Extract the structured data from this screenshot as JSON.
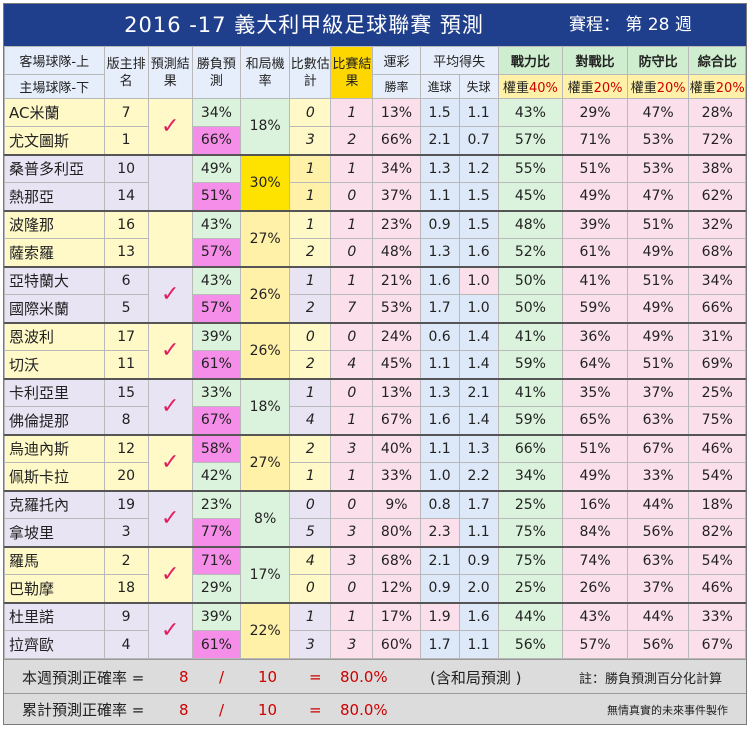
{
  "title": "2016 -17 義大利甲級足球聯賽 預測",
  "schedule_label": "賽程： 第 28 週",
  "headers": {
    "teams_top": "客場球隊-上",
    "teams_bottom": "主場球隊-下",
    "rank": "版主排名",
    "predict": "預測結果",
    "winloss": "勝負預測",
    "draw": "和局機率",
    "score_est": "比數估計",
    "result": "比賽結果",
    "lottery": "運彩",
    "lottery_sub": "勝率",
    "avg": "平均得失",
    "avg_for": "進球",
    "avg_against": "失球",
    "power": "戰力比",
    "matchup": "對戰比",
    "defense": "防守比",
    "overall": "綜合比",
    "weight_prefix": "權重",
    "w_power": "40%",
    "w_matchup": "20%",
    "w_defense": "20%",
    "w_overall": "20%"
  },
  "check_mark": "✓",
  "matches": [
    {
      "draw": "18%",
      "predicted": true,
      "away": {
        "team": "AC米蘭",
        "rank": "7",
        "win": "34%",
        "score": "0",
        "result": "1",
        "lottery": "13%",
        "gf": "1.5",
        "ga": "1.1",
        "power": "43%",
        "matchup": "29%",
        "defense": "47%",
        "overall": "28%"
      },
      "home": {
        "team": "尤文圖斯",
        "rank": "1",
        "win": "66%",
        "score": "3",
        "result": "2",
        "lottery": "66%",
        "gf": "2.1",
        "ga": "0.7",
        "power": "57%",
        "matchup": "71%",
        "defense": "53%",
        "overall": "72%"
      }
    },
    {
      "draw": "30%",
      "predicted": false,
      "away": {
        "team": "桑普多利亞",
        "rank": "10",
        "win": "49%",
        "score": "1",
        "result": "1",
        "lottery": "34%",
        "gf": "1.3",
        "ga": "1.2",
        "power": "55%",
        "matchup": "51%",
        "defense": "53%",
        "overall": "38%"
      },
      "home": {
        "team": "熱那亞",
        "rank": "14",
        "win": "51%",
        "score": "1",
        "result": "0",
        "lottery": "37%",
        "gf": "1.1",
        "ga": "1.5",
        "power": "45%",
        "matchup": "49%",
        "defense": "47%",
        "overall": "62%"
      }
    },
    {
      "draw": "27%",
      "predicted": false,
      "away": {
        "team": "波隆那",
        "rank": "16",
        "win": "43%",
        "score": "1",
        "result": "1",
        "lottery": "23%",
        "gf": "0.9",
        "ga": "1.5",
        "power": "48%",
        "matchup": "39%",
        "defense": "51%",
        "overall": "32%"
      },
      "home": {
        "team": "薩索羅",
        "rank": "13",
        "win": "57%",
        "score": "2",
        "result": "0",
        "lottery": "48%",
        "gf": "1.3",
        "ga": "1.6",
        "power": "52%",
        "matchup": "61%",
        "defense": "49%",
        "overall": "68%"
      }
    },
    {
      "draw": "26%",
      "predicted": true,
      "away": {
        "team": "亞特蘭大",
        "rank": "6",
        "win": "43%",
        "score": "1",
        "result": "1",
        "lottery": "21%",
        "gf": "1.6",
        "ga": "1.0",
        "power": "50%",
        "matchup": "41%",
        "defense": "51%",
        "overall": "34%"
      },
      "home": {
        "team": "國際米蘭",
        "rank": "5",
        "win": "57%",
        "score": "2",
        "result": "7",
        "lottery": "53%",
        "gf": "1.7",
        "ga": "1.0",
        "power": "50%",
        "matchup": "59%",
        "defense": "49%",
        "overall": "66%"
      }
    },
    {
      "draw": "26%",
      "predicted": true,
      "away": {
        "team": "恩波利",
        "rank": "17",
        "win": "39%",
        "score": "0",
        "result": "0",
        "lottery": "24%",
        "gf": "0.6",
        "ga": "1.4",
        "power": "41%",
        "matchup": "36%",
        "defense": "49%",
        "overall": "31%"
      },
      "home": {
        "team": "切沃",
        "rank": "11",
        "win": "61%",
        "score": "2",
        "result": "4",
        "lottery": "45%",
        "gf": "1.1",
        "ga": "1.4",
        "power": "59%",
        "matchup": "64%",
        "defense": "51%",
        "overall": "69%"
      }
    },
    {
      "draw": "18%",
      "predicted": true,
      "away": {
        "team": "卡利亞里",
        "rank": "15",
        "win": "33%",
        "score": "1",
        "result": "0",
        "lottery": "13%",
        "gf": "1.3",
        "ga": "2.1",
        "power": "41%",
        "matchup": "35%",
        "defense": "37%",
        "overall": "25%"
      },
      "home": {
        "team": "佛倫提那",
        "rank": "8",
        "win": "67%",
        "score": "4",
        "result": "1",
        "lottery": "67%",
        "gf": "1.6",
        "ga": "1.4",
        "power": "59%",
        "matchup": "65%",
        "defense": "63%",
        "overall": "75%"
      }
    },
    {
      "draw": "27%",
      "predicted": true,
      "away": {
        "team": "烏迪內斯",
        "rank": "12",
        "win": "58%",
        "score": "2",
        "result": "3",
        "lottery": "40%",
        "gf": "1.1",
        "ga": "1.3",
        "power": "66%",
        "matchup": "51%",
        "defense": "67%",
        "overall": "46%"
      },
      "home": {
        "team": "佩斯卡拉",
        "rank": "20",
        "win": "42%",
        "score": "1",
        "result": "1",
        "lottery": "33%",
        "gf": "1.0",
        "ga": "2.2",
        "power": "34%",
        "matchup": "49%",
        "defense": "33%",
        "overall": "54%"
      }
    },
    {
      "draw": "8%",
      "predicted": true,
      "away": {
        "team": "克羅托內",
        "rank": "19",
        "win": "23%",
        "score": "0",
        "result": "0",
        "lottery": "9%",
        "gf": "0.8",
        "ga": "1.7",
        "power": "25%",
        "matchup": "16%",
        "defense": "44%",
        "overall": "18%"
      },
      "home": {
        "team": "拿坡里",
        "rank": "3",
        "win": "77%",
        "score": "5",
        "result": "3",
        "lottery": "80%",
        "gf": "2.3",
        "ga": "1.1",
        "power": "75%",
        "matchup": "84%",
        "defense": "56%",
        "overall": "82%"
      }
    },
    {
      "draw": "17%",
      "predicted": true,
      "away": {
        "team": "羅馬",
        "rank": "2",
        "win": "71%",
        "score": "4",
        "result": "3",
        "lottery": "68%",
        "gf": "2.1",
        "ga": "0.9",
        "power": "75%",
        "matchup": "74%",
        "defense": "63%",
        "overall": "54%"
      },
      "home": {
        "team": "巴勒摩",
        "rank": "18",
        "win": "29%",
        "score": "0",
        "result": "0",
        "lottery": "12%",
        "gf": "0.9",
        "ga": "2.0",
        "power": "25%",
        "matchup": "26%",
        "defense": "37%",
        "overall": "46%"
      }
    },
    {
      "draw": "22%",
      "predicted": true,
      "away": {
        "team": "杜里諾",
        "rank": "9",
        "win": "39%",
        "score": "1",
        "result": "1",
        "lottery": "17%",
        "gf": "1.9",
        "ga": "1.6",
        "power": "44%",
        "matchup": "43%",
        "defense": "44%",
        "overall": "33%"
      },
      "home": {
        "team": "拉齊歐",
        "rank": "4",
        "win": "61%",
        "score": "3",
        "result": "3",
        "lottery": "60%",
        "gf": "1.7",
        "ga": "1.1",
        "power": "56%",
        "matchup": "57%",
        "defense": "56%",
        "overall": "67%"
      }
    }
  ],
  "footer": {
    "weekly_label": "本週預測正確率 =",
    "weekly_correct": "8",
    "slash": "/",
    "weekly_total": "10",
    "equals": "=",
    "weekly_rate": "80.0%",
    "weekly_note": "(含和局預測 )",
    "note_right": "註：勝負預測百分化計算",
    "cum_label": "累計預測正確率 =",
    "cum_correct": "8",
    "cum_total": "10",
    "cum_rate": "80.0%",
    "credit": "無情真實的未來事件製作"
  },
  "colors": {
    "title_bg": "#1f3f8c",
    "check": "#e02060",
    "highlight_win": "#f48ee8",
    "highlight_draw": "#ffe300"
  }
}
